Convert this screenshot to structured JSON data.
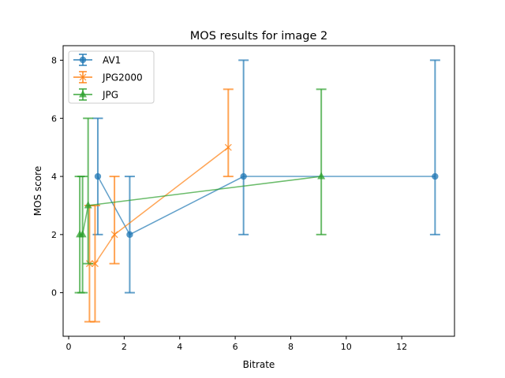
{
  "chart_data": {
    "type": "line",
    "title": "MOS results for image 2",
    "xlabel": "Bitrate",
    "ylabel": "MOS score",
    "xlim": [
      -0.2,
      13.9
    ],
    "ylim": [
      -1.5,
      8.5
    ],
    "xticks": [
      0,
      2,
      4,
      6,
      8,
      10,
      12
    ],
    "yticks": [
      0,
      2,
      4,
      6,
      8
    ],
    "grid": false,
    "legend_position": "top-left",
    "series": [
      {
        "name": "AV1",
        "color": "#1f77b4",
        "marker": "circle",
        "points": [
          {
            "x": 1.05,
            "y": 4,
            "err_low": 2,
            "err_high": 6
          },
          {
            "x": 2.2,
            "y": 2,
            "err_low": 0,
            "err_high": 4
          },
          {
            "x": 6.3,
            "y": 4,
            "err_low": 2,
            "err_high": 8
          },
          {
            "x": 13.2,
            "y": 4,
            "err_low": 2,
            "err_high": 8
          }
        ]
      },
      {
        "name": "JPG2000",
        "color": "#ff7f0e",
        "marker": "x",
        "points": [
          {
            "x": 0.75,
            "y": 1,
            "err_low": -1,
            "err_high": 3
          },
          {
            "x": 0.95,
            "y": 1,
            "err_low": -1,
            "err_high": 3
          },
          {
            "x": 1.65,
            "y": 2,
            "err_low": 1,
            "err_high": 4
          },
          {
            "x": 5.75,
            "y": 5,
            "err_low": 4,
            "err_high": 7
          }
        ]
      },
      {
        "name": "JPG",
        "color": "#2ca02c",
        "marker": "triangle",
        "points": [
          {
            "x": 0.4,
            "y": 2,
            "err_low": 0,
            "err_high": 4
          },
          {
            "x": 0.5,
            "y": 2,
            "err_low": 0,
            "err_high": 4
          },
          {
            "x": 0.7,
            "y": 3,
            "err_low": 1,
            "err_high": 6
          },
          {
            "x": 9.1,
            "y": 4,
            "err_low": 2,
            "err_high": 7
          }
        ]
      }
    ]
  }
}
